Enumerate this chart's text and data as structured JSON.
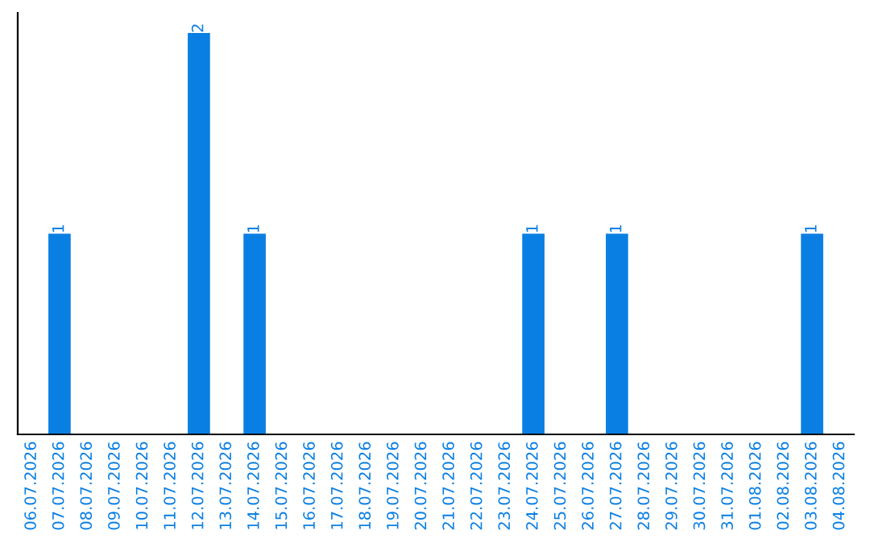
{
  "chart_data": {
    "type": "bar",
    "categories": [
      "06.07.2026",
      "07.07.2026",
      "08.07.2026",
      "09.07.2026",
      "10.07.2026",
      "11.07.2026",
      "12.07.2026",
      "13.07.2026",
      "14.07.2026",
      "15.07.2026",
      "16.07.2026",
      "17.07.2026",
      "18.07.2026",
      "19.07.2026",
      "20.07.2026",
      "21.07.2026",
      "22.07.2026",
      "23.07.2026",
      "24.07.2026",
      "25.07.2026",
      "26.07.2026",
      "27.07.2026",
      "28.07.2026",
      "29.07.2026",
      "30.07.2026",
      "31.07.2026",
      "01.08.2026",
      "02.08.2026",
      "03.08.2026",
      "04.08.2026"
    ],
    "values": [
      0,
      1,
      0,
      0,
      0,
      0,
      2,
      0,
      1,
      0,
      0,
      0,
      0,
      0,
      0,
      0,
      0,
      0,
      1,
      0,
      0,
      1,
      0,
      0,
      0,
      0,
      0,
      0,
      1,
      0
    ],
    "color": "#0a7fe3",
    "ylim": [
      0,
      2.1
    ],
    "value_labels": [
      null,
      "1",
      null,
      null,
      null,
      null,
      "2",
      null,
      "1",
      null,
      null,
      null,
      null,
      null,
      null,
      null,
      null,
      null,
      "1",
      null,
      null,
      "1",
      null,
      null,
      null,
      null,
      null,
      null,
      "1",
      null
    ],
    "tick_labels": "x",
    "grid": false,
    "legend": false
  }
}
